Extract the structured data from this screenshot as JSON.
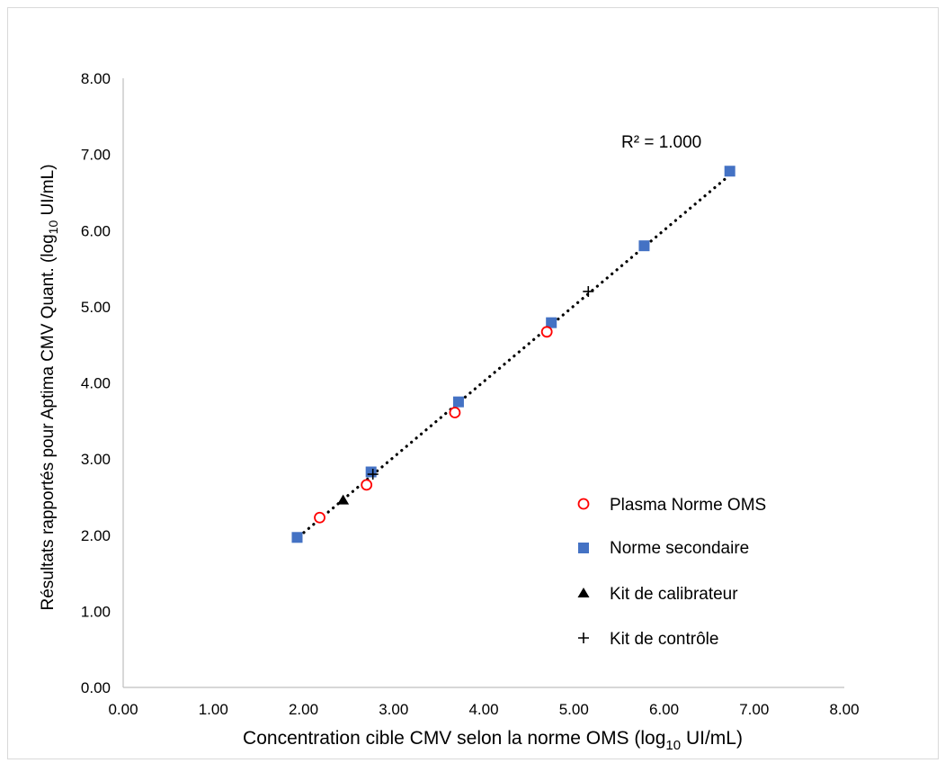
{
  "chart_data": {
    "type": "scatter",
    "title": "",
    "xlabel": {
      "prefix": "Concentration cible CMV selon la norme OMS (log",
      "subscript": "10",
      "suffix": " UI/mL)"
    },
    "ylabel": {
      "prefix": "Résultats rapportés pour Aptima CMV Quant. (log",
      "subscript": "10",
      "suffix": " UI/mL)"
    },
    "xlim": [
      0,
      8
    ],
    "ylim": [
      0,
      8
    ],
    "xticks": [
      "0.00",
      "1.00",
      "2.00",
      "3.00",
      "4.00",
      "5.00",
      "6.00",
      "7.00",
      "8.00"
    ],
    "yticks": [
      "0.00",
      "1.00",
      "2.00",
      "3.00",
      "4.00",
      "5.00",
      "6.00",
      "7.00",
      "8.00"
    ],
    "grid": false,
    "legend_position": "bottom-right",
    "annotation": "R² = 1.000",
    "trendline": {
      "style": "dotted",
      "color": "#000000",
      "x": [
        1.95,
        6.72
      ],
      "y": [
        1.98,
        6.72
      ]
    },
    "series": [
      {
        "name": "Plasma Norme OMS",
        "marker": "circle-open",
        "color": "#ff0000",
        "x": [
          2.18,
          2.7,
          3.68,
          4.7
        ],
        "y": [
          2.23,
          2.66,
          3.61,
          4.67
        ]
      },
      {
        "name": "Norme secondaire",
        "marker": "square",
        "color": "#4472c4",
        "x": [
          1.93,
          2.75,
          3.72,
          4.75,
          5.78,
          6.73
        ],
        "y": [
          1.97,
          2.83,
          3.75,
          4.79,
          5.8,
          6.78
        ]
      },
      {
        "name": "Kit de calibrateur",
        "marker": "triangle",
        "color": "#000000",
        "x": [
          2.44
        ],
        "y": [
          2.45
        ]
      },
      {
        "name": "Kit de contrôle",
        "marker": "plus",
        "color": "#000000",
        "x": [
          2.77,
          5.16
        ],
        "y": [
          2.8,
          5.2
        ]
      }
    ]
  }
}
